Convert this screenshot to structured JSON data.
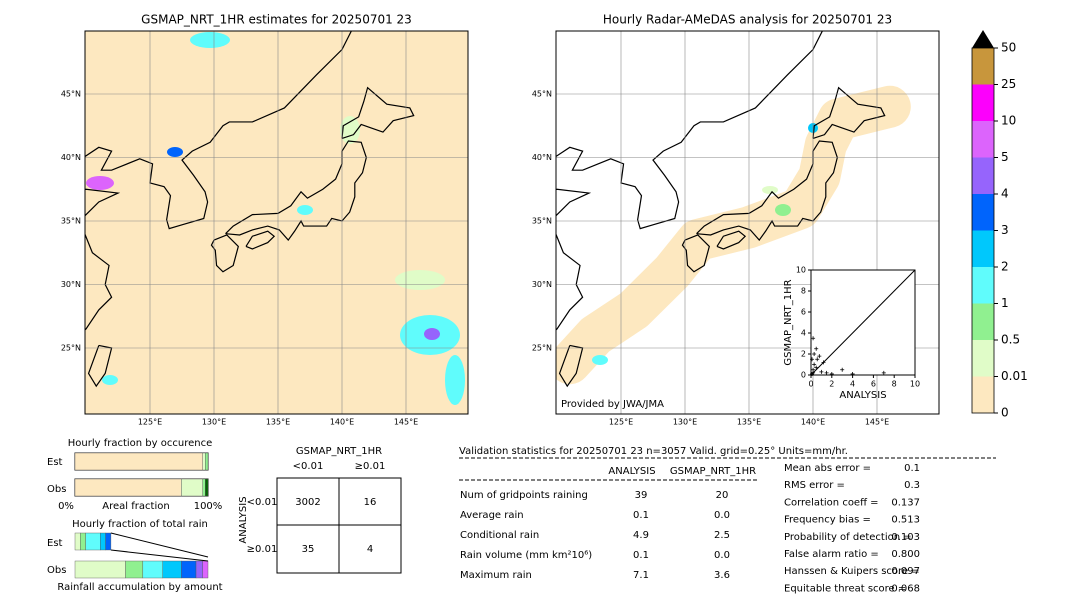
{
  "maps": [
    {
      "title": "GSMAP_NRT_1HR estimates for 20250701 23",
      "lon_labels": [
        "125°E",
        "130°E",
        "135°E",
        "140°E",
        "145°E"
      ],
      "lat_labels": [
        "45°N",
        "40°N",
        "35°N",
        "30°N",
        "25°N"
      ]
    },
    {
      "title": "Hourly Radar-AMeDAS analysis for 20250701 23",
      "lon_labels": [
        "125°E",
        "130°E",
        "135°E",
        "140°E",
        "145°E"
      ],
      "lat_labels": [
        "45°N",
        "40°N",
        "35°N",
        "30°N",
        "25°N"
      ],
      "credit": "Provided by JWA/JMA"
    }
  ],
  "chart_data": [
    {
      "type": "scatter",
      "xlabel": "ANALYSIS",
      "ylabel": "GSMAP_NRT_1HR",
      "xlim": [
        0,
        10
      ],
      "ylim": [
        0,
        10
      ],
      "xticks": [
        0,
        2,
        4,
        6,
        8,
        10
      ],
      "yticks": [
        0,
        2,
        4,
        6,
        8,
        10
      ],
      "x": [
        0.1,
        0.2,
        0.3,
        0.5,
        0.2,
        0.3,
        0.1,
        1,
        1.5,
        2,
        3,
        4,
        7,
        0.5,
        0.8,
        0.2,
        1.2,
        0.6
      ],
      "y": [
        0.1,
        0.5,
        1,
        2.5,
        3.5,
        2,
        1.5,
        0.3,
        0.2,
        0.1,
        0.5,
        0.1,
        0.2,
        0.7,
        1.8,
        0.2,
        1.2,
        1.5
      ],
      "color": "#000000"
    },
    {
      "type": "colorbar",
      "ticks": [
        0,
        0.01,
        0.5,
        1,
        2,
        3,
        4,
        5,
        10,
        25,
        50
      ],
      "colors": [
        "#fde8c0",
        "#e0fcc8",
        "#90f090",
        "#60fcfc",
        "#00c8fc",
        "#0064fc",
        "#9664fc",
        "#dc64fc",
        "#fc00fc",
        "#c8963c"
      ]
    }
  ],
  "occurrence": {
    "title": "Hourly fraction by occurence",
    "rows": [
      "Est",
      "Obs"
    ],
    "left": "0%",
    "mid": "Areal fraction",
    "right": "100%",
    "est": [
      0.96,
      0.02,
      0.02
    ],
    "obs": [
      0.8,
      0.16,
      0.02,
      0.02
    ],
    "colors": [
      "#fde8c0",
      "#e0fcc8",
      "#90f090",
      "#006400"
    ]
  },
  "total_rain": {
    "title": "Hourly fraction of total rain",
    "rows": [
      "Est",
      "Obs"
    ],
    "footer": "Rainfall accumulation by amount",
    "est": [
      0.04,
      0.04,
      0.11,
      0.04,
      0.04
    ],
    "obs": [
      0.38,
      0.13,
      0.15,
      0.14,
      0.11,
      0.05,
      0.04
    ],
    "colors": [
      "#e0fcc8",
      "#90f090",
      "#60fcfc",
      "#00c8fc",
      "#0064fc",
      "#9664fc",
      "#dc64fc"
    ]
  },
  "contingency": {
    "title": "GSMAP_NRT_1HR",
    "columns": [
      "<0.01",
      "≥0.01"
    ],
    "row_title": "ANALYSIS",
    "rows": [
      "<0.01",
      "≥0.01"
    ],
    "cells": [
      [
        "3002",
        "16"
      ],
      [
        "35",
        "4"
      ]
    ]
  },
  "validation": {
    "header": "Validation statistics for 20250701 23  n=3057 Valid. grid=0.25° Units=mm/hr.",
    "columns": [
      "ANALYSIS",
      "GSMAP_NRT_1HR"
    ],
    "rows": [
      [
        "Num of gridpoints raining",
        "39",
        "20"
      ],
      [
        "Average rain",
        "0.1",
        "0.0"
      ],
      [
        "Conditional rain",
        "4.9",
        "2.5"
      ],
      [
        "Rain volume (mm km²10⁶)",
        "0.1",
        "0.0"
      ],
      [
        "Maximum rain",
        "7.1",
        "3.6"
      ]
    ],
    "scores": [
      [
        "Mean abs error =",
        "0.1"
      ],
      [
        "RMS error =",
        "0.3"
      ],
      [
        "Correlation coeff =",
        "0.137"
      ],
      [
        "Frequency bias =",
        "0.513"
      ],
      [
        "Probability of detection =",
        "0.103"
      ],
      [
        "False alarm ratio =",
        "0.800"
      ],
      [
        "Hanssen & Kuipers score =",
        "0.097"
      ],
      [
        "Equitable threat score =",
        "0.068"
      ]
    ]
  }
}
